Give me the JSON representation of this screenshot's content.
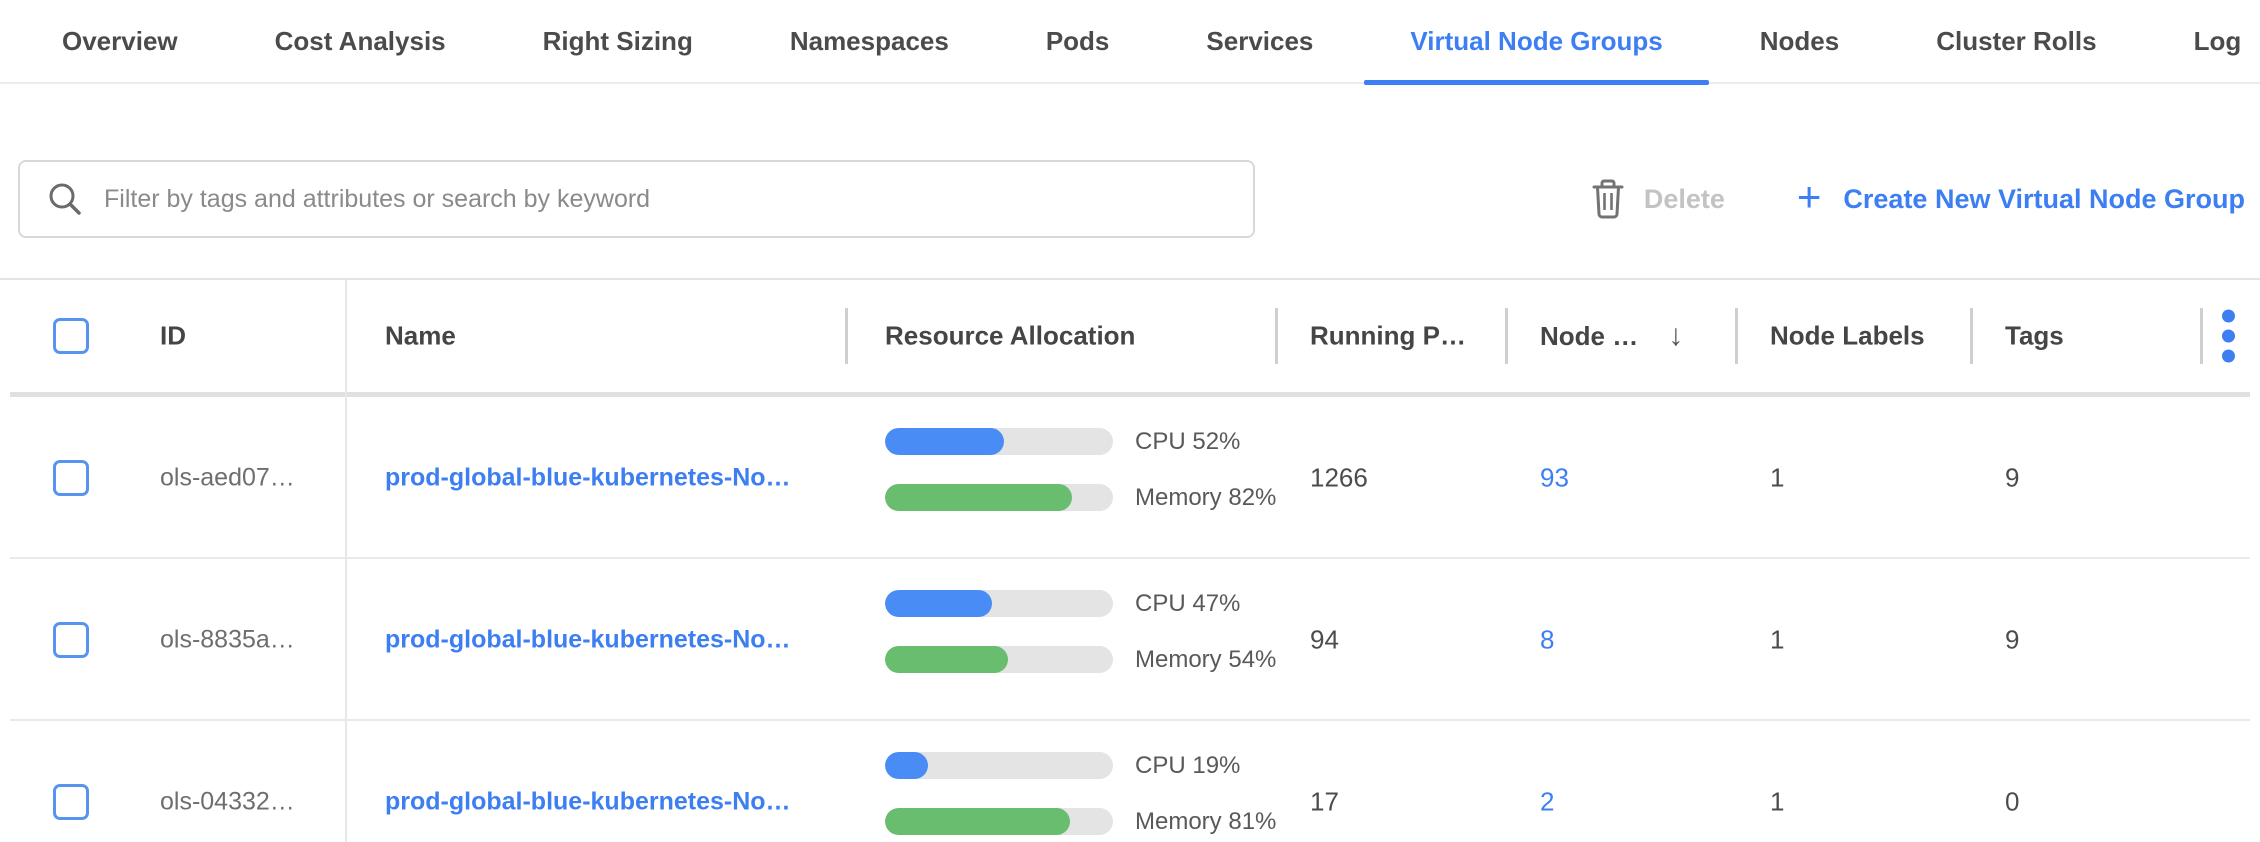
{
  "tabs": {
    "items": [
      {
        "label": "Overview",
        "active": false
      },
      {
        "label": "Cost Analysis",
        "active": false
      },
      {
        "label": "Right Sizing",
        "active": false
      },
      {
        "label": "Namespaces",
        "active": false
      },
      {
        "label": "Pods",
        "active": false
      },
      {
        "label": "Services",
        "active": false
      },
      {
        "label": "Virtual Node Groups",
        "active": true
      },
      {
        "label": "Nodes",
        "active": false
      },
      {
        "label": "Cluster Rolls",
        "active": false
      },
      {
        "label": "Log",
        "active": false
      }
    ]
  },
  "toolbar": {
    "search_placeholder": "Filter by tags and attributes or search by keyword",
    "delete_label": "Delete",
    "plus_glyph": "+",
    "create_label": "Create New Virtual Node Group"
  },
  "table": {
    "columns": {
      "id": "ID",
      "name": "Name",
      "resource_allocation": "Resource Allocation",
      "running_pods": "Running P…",
      "nodes": "Node …",
      "node_labels": "Node Labels",
      "tags": "Tags"
    },
    "sort_glyph": "↓",
    "rows": [
      {
        "id": "ols-aed07…",
        "name": "prod-global-blue-kubernetes-No…",
        "cpu_pct": 52,
        "cpu_label": "CPU 52%",
        "memory_pct": 82,
        "memory_label": "Memory 82%",
        "running_pods": "1266",
        "nodes": "93",
        "node_labels": "1",
        "tags": "9"
      },
      {
        "id": "ols-8835a…",
        "name": "prod-global-blue-kubernetes-No…",
        "cpu_pct": 47,
        "cpu_label": "CPU 47%",
        "memory_pct": 54,
        "memory_label": "Memory 54%",
        "running_pods": "94",
        "nodes": "8",
        "node_labels": "1",
        "tags": "9"
      },
      {
        "id": "ols-04332…",
        "name": "prod-global-blue-kubernetes-No…",
        "cpu_pct": 19,
        "cpu_label": "CPU 19%",
        "memory_pct": 81,
        "memory_label": "Memory 81%",
        "running_pods": "17",
        "nodes": "2",
        "node_labels": "1",
        "tags": "0"
      }
    ]
  },
  "colors": {
    "accent_blue": "#3d7ff2",
    "cpu_bar_blue": "#4a8cf5",
    "memory_bar_green": "#68bd6e",
    "disabled_gray": "#c3c3c3"
  }
}
